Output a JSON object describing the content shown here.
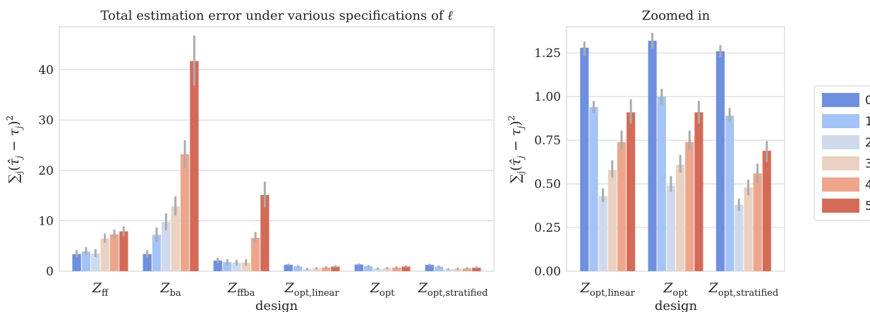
{
  "legend": {
    "labels": [
      "0",
      "1",
      "2",
      "3",
      "4",
      "5"
    ],
    "placement": "right"
  },
  "colors": [
    "#6f8fdf",
    "#a4c3f7",
    "#cfd9ec",
    "#ebd1c2",
    "#eda68c",
    "#d46b58"
  ],
  "error_bar_color": "#ababab",
  "chart_data": [
    {
      "type": "bar",
      "title": "Total estimation error under various specifications of ℓ",
      "xlabel": "design",
      "ylabel": "Σj(τ̂j − τj)²",
      "categories": [
        "Zff",
        "Zba",
        "Zffba",
        "Zopt,linear",
        "Zopt",
        "Zopt,stratified"
      ],
      "category_labels": [
        {
          "base": "Z",
          "sub": "ff"
        },
        {
          "base": "Z",
          "sub": "ba"
        },
        {
          "base": "Z",
          "sub": "ffba"
        },
        {
          "base": "Z",
          "sub": "opt,linear"
        },
        {
          "base": "Z",
          "sub": "opt"
        },
        {
          "base": "Z",
          "sub": "opt,stratified"
        }
      ],
      "ylim": [
        0,
        48.5
      ],
      "yticks": [
        0,
        10,
        20,
        30,
        40
      ],
      "grid": true,
      "series": [
        {
          "name": "0",
          "values": [
            3.4,
            3.4,
            2.1,
            1.28,
            1.32,
            1.26
          ],
          "err": [
            [
              2.9,
              4.0
            ],
            [
              2.8,
              4.0
            ],
            [
              1.7,
              2.5
            ],
            [
              1.24,
              1.31
            ],
            [
              1.28,
              1.36
            ],
            [
              1.23,
              1.29
            ]
          ]
        },
        {
          "name": "1",
          "values": [
            3.9,
            7.2,
            1.8,
            0.94,
            1.0,
            0.89
          ],
          "err": [
            [
              3.3,
              4.6
            ],
            [
              6.0,
              8.5
            ],
            [
              1.4,
              2.2
            ],
            [
              0.91,
              0.97
            ],
            [
              0.96,
              1.04
            ],
            [
              0.86,
              0.93
            ]
          ]
        },
        {
          "name": "2",
          "values": [
            3.5,
            9.8,
            1.7,
            0.43,
            0.49,
            0.38
          ],
          "err": [
            [
              3.0,
              4.2
            ],
            [
              8.3,
              11.3
            ],
            [
              1.3,
              2.1
            ],
            [
              0.4,
              0.47
            ],
            [
              0.46,
              0.54
            ],
            [
              0.35,
              0.41
            ]
          ]
        },
        {
          "name": "3",
          "values": [
            6.5,
            12.9,
            1.7,
            0.58,
            0.61,
            0.48
          ],
          "err": [
            [
              5.8,
              7.3
            ],
            [
              11.2,
              14.7
            ],
            [
              1.3,
              2.2
            ],
            [
              0.54,
              0.63
            ],
            [
              0.57,
              0.66
            ],
            [
              0.44,
              0.52
            ]
          ]
        },
        {
          "name": "4",
          "values": [
            7.3,
            23.2,
            6.6,
            0.74,
            0.74,
            0.56
          ],
          "err": [
            [
              6.5,
              8.1
            ],
            [
              20.7,
              25.8
            ],
            [
              5.8,
              7.6
            ],
            [
              0.7,
              0.8
            ],
            [
              0.7,
              0.8
            ],
            [
              0.51,
              0.61
            ]
          ]
        },
        {
          "name": "5",
          "values": [
            7.9,
            41.7,
            15.1,
            0.91,
            0.91,
            0.69
          ],
          "err": [
            [
              7.1,
              8.7
            ],
            [
              37.0,
              46.6
            ],
            [
              12.8,
              17.6
            ],
            [
              0.85,
              0.98
            ],
            [
              0.85,
              0.97
            ],
            [
              0.63,
              0.74
            ]
          ]
        }
      ]
    },
    {
      "type": "bar",
      "title": "Zoomed in",
      "xlabel": "design",
      "ylabel": "Σj(τ̂j − τj)²",
      "categories": [
        "Zopt,linear",
        "Zopt",
        "Zopt,stratified"
      ],
      "category_labels": [
        {
          "base": "Z",
          "sub": "opt,linear"
        },
        {
          "base": "Z",
          "sub": "opt"
        },
        {
          "base": "Z",
          "sub": "opt,stratified"
        }
      ],
      "ylim": [
        0,
        1.4
      ],
      "yticks": [
        "0.00",
        "0.25",
        "0.50",
        "0.75",
        "1.00",
        "1.25"
      ],
      "grid": true,
      "series": [
        {
          "name": "0",
          "values": [
            1.28,
            1.32,
            1.26
          ],
          "err": [
            [
              1.24,
              1.31
            ],
            [
              1.28,
              1.36
            ],
            [
              1.23,
              1.29
            ]
          ]
        },
        {
          "name": "1",
          "values": [
            0.94,
            1.0,
            0.89
          ],
          "err": [
            [
              0.91,
              0.97
            ],
            [
              0.96,
              1.04
            ],
            [
              0.86,
              0.93
            ]
          ]
        },
        {
          "name": "2",
          "values": [
            0.43,
            0.49,
            0.38
          ],
          "err": [
            [
              0.4,
              0.47
            ],
            [
              0.46,
              0.54
            ],
            [
              0.35,
              0.41
            ]
          ]
        },
        {
          "name": "3",
          "values": [
            0.58,
            0.61,
            0.48
          ],
          "err": [
            [
              0.54,
              0.63
            ],
            [
              0.57,
              0.66
            ],
            [
              0.44,
              0.52
            ]
          ]
        },
        {
          "name": "4",
          "values": [
            0.74,
            0.74,
            0.56
          ],
          "err": [
            [
              0.7,
              0.8
            ],
            [
              0.7,
              0.8
            ],
            [
              0.51,
              0.61
            ]
          ]
        },
        {
          "name": "5",
          "values": [
            0.91,
            0.91,
            0.69
          ],
          "err": [
            [
              0.85,
              0.98
            ],
            [
              0.85,
              0.97
            ],
            [
              0.63,
              0.74
            ]
          ]
        }
      ]
    }
  ]
}
